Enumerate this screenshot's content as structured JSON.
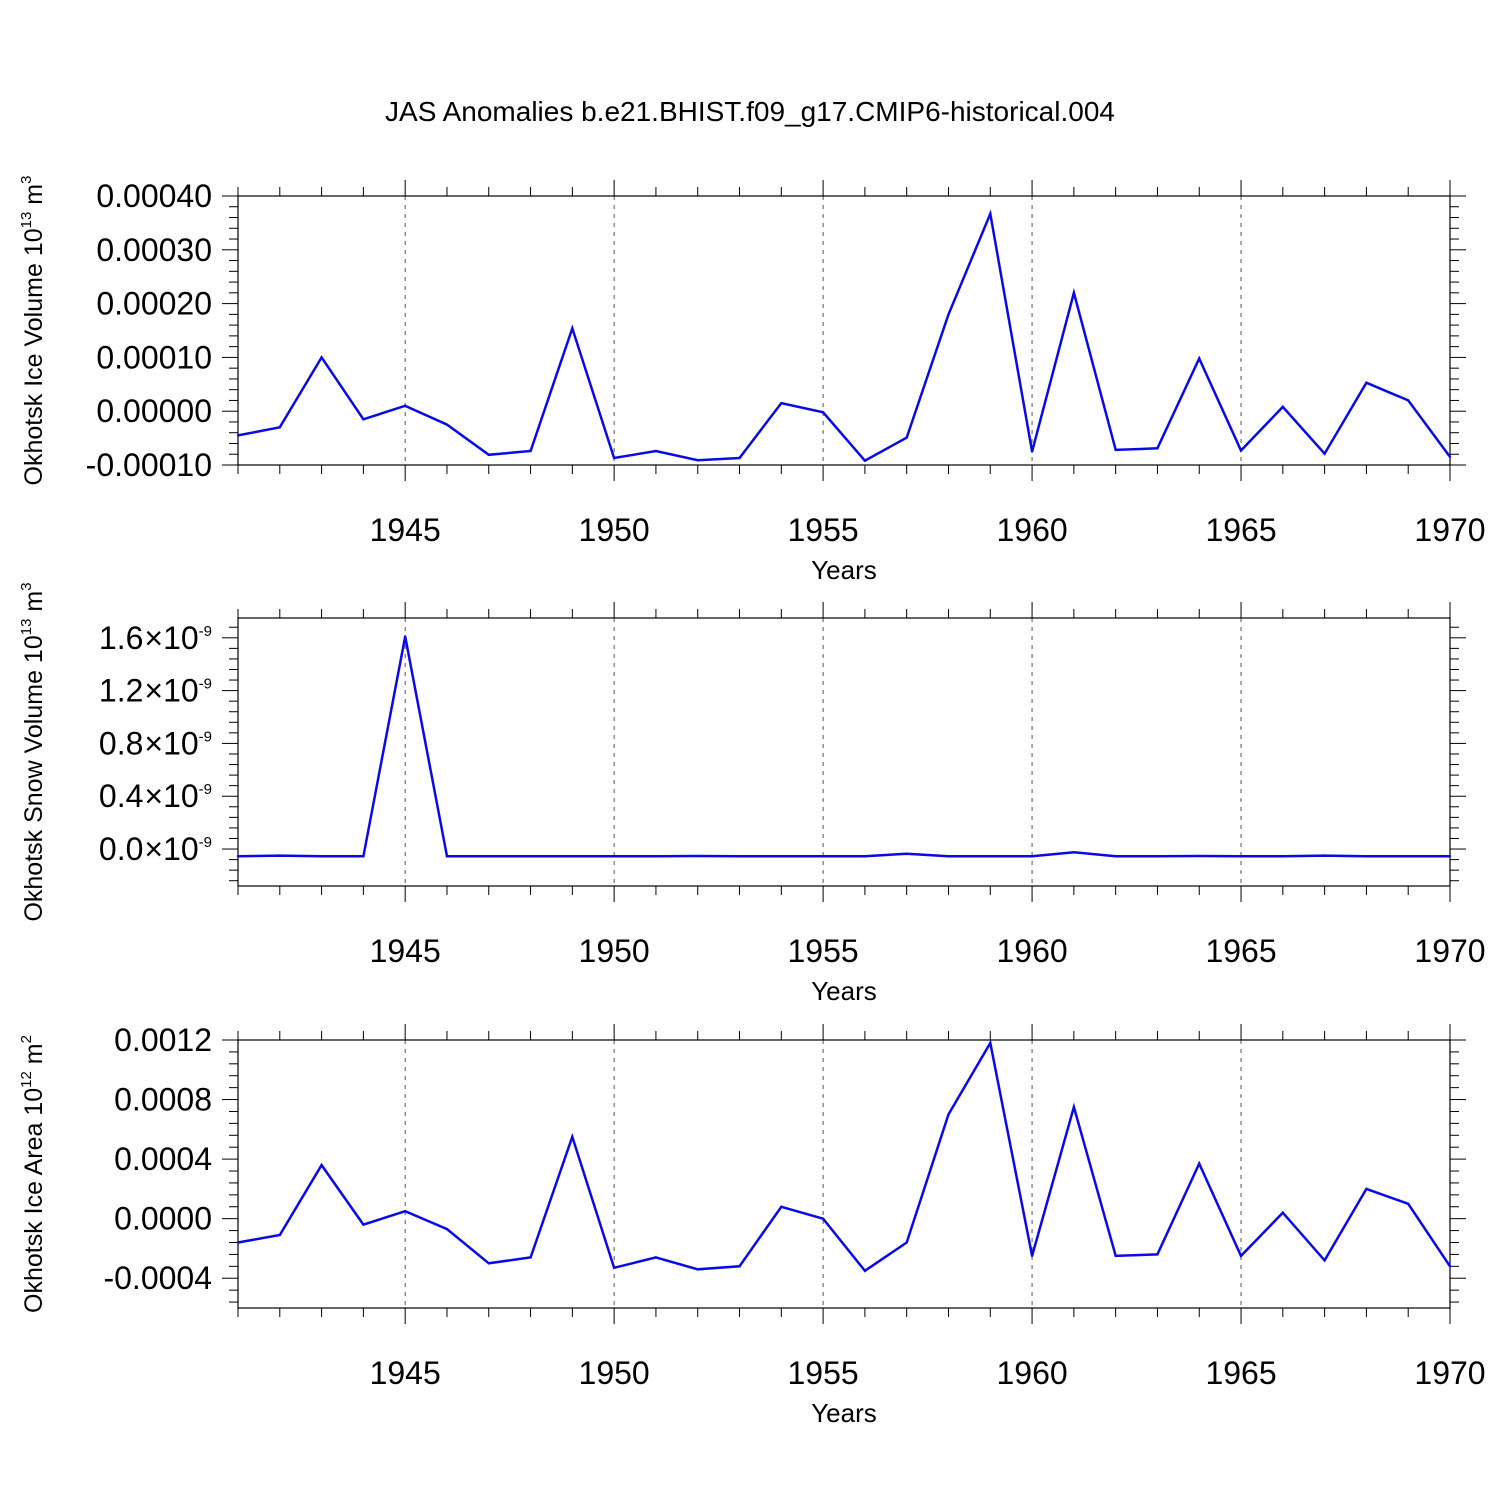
{
  "title": "JAS Anomalies b.e21.BHIST.f09_g17.CMIP6-historical.004",
  "colors": {
    "line": "#0a0ae6",
    "axis": "#000000",
    "grid": "#555555"
  },
  "chart_data": [
    {
      "type": "line",
      "name": "panel-ice-volume",
      "ylabel_main": "Okhotsk Ice Volume 10",
      "ylabel_exp": "13",
      "ylabel_unit": " m",
      "ylabel_unit_exp": "3",
      "xlabel": "Years",
      "xlim": [
        1941,
        1970
      ],
      "ylim": [
        -0.0001,
        0.0004
      ],
      "x_ticks": [
        1945,
        1950,
        1955,
        1960,
        1965,
        1970
      ],
      "x_tick_labels": [
        "1945",
        "1950",
        "1955",
        "1960",
        "1965",
        "1970"
      ],
      "y_ticks": [
        -0.0001,
        0.0,
        0.0001,
        0.0002,
        0.0003,
        0.0004
      ],
      "y_tick_labels": [
        {
          "text": "-0.00010"
        },
        {
          "text": "0.00000"
        },
        {
          "text": "0.00010"
        },
        {
          "text": "0.00020"
        },
        {
          "text": "0.00030"
        },
        {
          "text": "0.00040"
        }
      ],
      "x": [
        1941,
        1942,
        1943,
        1944,
        1945,
        1946,
        1947,
        1948,
        1949,
        1950,
        1951,
        1952,
        1953,
        1954,
        1955,
        1956,
        1957,
        1958,
        1959,
        1960,
        1961,
        1962,
        1963,
        1964,
        1965,
        1966,
        1967,
        1968,
        1969,
        1970
      ],
      "values": [
        -4.5e-05,
        -3e-05,
        0.0001,
        -1.5e-05,
        1e-05,
        -2.5e-05,
        -8.1e-05,
        -7.4e-05,
        0.000154,
        -8.7e-05,
        -7.4e-05,
        -9.1e-05,
        -8.7e-05,
        1.5e-05,
        -2e-06,
        -9.2e-05,
        -4.9e-05,
        0.00018,
        0.000367,
        -7.5e-05,
        0.00022,
        -7.2e-05,
        -6.9e-05,
        9.8e-05,
        -7.3e-05,
        8e-06,
        -7.9e-05,
        5.3e-05,
        2e-05,
        -8.5e-05
      ]
    },
    {
      "type": "line",
      "name": "panel-snow-volume",
      "ylabel_main": "Okhotsk Snow Volume 10",
      "ylabel_exp": "13",
      "ylabel_unit": " m",
      "ylabel_unit_exp": "3",
      "xlabel": "Years",
      "xlim": [
        1941,
        1970
      ],
      "ylim": [
        -2.8e-10,
        1.75e-09
      ],
      "x_ticks": [
        1945,
        1950,
        1955,
        1960,
        1965,
        1970
      ],
      "x_tick_labels": [
        "1945",
        "1950",
        "1955",
        "1960",
        "1965",
        "1970"
      ],
      "y_ticks": [
        0.0,
        4e-10,
        8e-10,
        1.2e-09,
        1.6e-09
      ],
      "y_tick_labels": [
        {
          "text": "0.0",
          "times": "×",
          "base": "10",
          "exp": "-9"
        },
        {
          "text": "0.4",
          "times": "×",
          "base": "10",
          "exp": "-9"
        },
        {
          "text": "0.8",
          "times": "×",
          "base": "10",
          "exp": "-9"
        },
        {
          "text": "1.2",
          "times": "×",
          "base": "10",
          "exp": "-9"
        },
        {
          "text": "1.6",
          "times": "×",
          "base": "10",
          "exp": "-9"
        }
      ],
      "x": [
        1941,
        1942,
        1943,
        1944,
        1945,
        1946,
        1947,
        1948,
        1949,
        1950,
        1951,
        1952,
        1953,
        1954,
        1955,
        1956,
        1957,
        1958,
        1959,
        1960,
        1961,
        1962,
        1963,
        1964,
        1965,
        1966,
        1967,
        1968,
        1969,
        1970
      ],
      "values": [
        -5.5e-11,
        -5e-11,
        -5.5e-11,
        -5.5e-11,
        1.61e-09,
        -5.5e-11,
        -5.5e-11,
        -5.5e-11,
        -5.5e-11,
        -5.5e-11,
        -5.5e-11,
        -5.3e-11,
        -5.5e-11,
        -5.5e-11,
        -5.5e-11,
        -5.5e-11,
        -3.5e-11,
        -5.5e-11,
        -5.5e-11,
        -5.5e-11,
        -2.5e-11,
        -5.5e-11,
        -5.5e-11,
        -5.3e-11,
        -5.5e-11,
        -5.5e-11,
        -5e-11,
        -5.5e-11,
        -5.5e-11,
        -5.5e-11
      ]
    },
    {
      "type": "line",
      "name": "panel-ice-area",
      "ylabel_main": "Okhotsk Ice Area 10",
      "ylabel_exp": "12",
      "ylabel_unit": " m",
      "ylabel_unit_exp": "2",
      "xlabel": "Years",
      "xlim": [
        1941,
        1970
      ],
      "ylim": [
        -0.0006,
        0.0012
      ],
      "x_ticks": [
        1945,
        1950,
        1955,
        1960,
        1965,
        1970
      ],
      "x_tick_labels": [
        "1945",
        "1950",
        "1955",
        "1960",
        "1965",
        "1970"
      ],
      "y_ticks": [
        -0.0004,
        0.0,
        0.0004,
        0.0008,
        0.0012
      ],
      "y_tick_labels": [
        {
          "text": "-0.0004"
        },
        {
          "text": "0.0000"
        },
        {
          "text": "0.0004"
        },
        {
          "text": "0.0008"
        },
        {
          "text": "0.0012"
        }
      ],
      "x": [
        1941,
        1942,
        1943,
        1944,
        1945,
        1946,
        1947,
        1948,
        1949,
        1950,
        1951,
        1952,
        1953,
        1954,
        1955,
        1956,
        1957,
        1958,
        1959,
        1960,
        1961,
        1962,
        1963,
        1964,
        1965,
        1966,
        1967,
        1968,
        1969,
        1970
      ],
      "values": [
        -0.00016,
        -0.00011,
        0.00036,
        -4e-05,
        5e-05,
        -7e-05,
        -0.0003,
        -0.00026,
        0.00055,
        -0.00033,
        -0.00026,
        -0.00034,
        -0.00032,
        8e-05,
        0.0,
        -0.00035,
        -0.00016,
        0.0007,
        0.00118,
        -0.00025,
        0.00075,
        -0.00025,
        -0.00024,
        0.00037,
        -0.00025,
        4e-05,
        -0.00028,
        0.0002,
        0.0001,
        -0.00032
      ]
    }
  ]
}
